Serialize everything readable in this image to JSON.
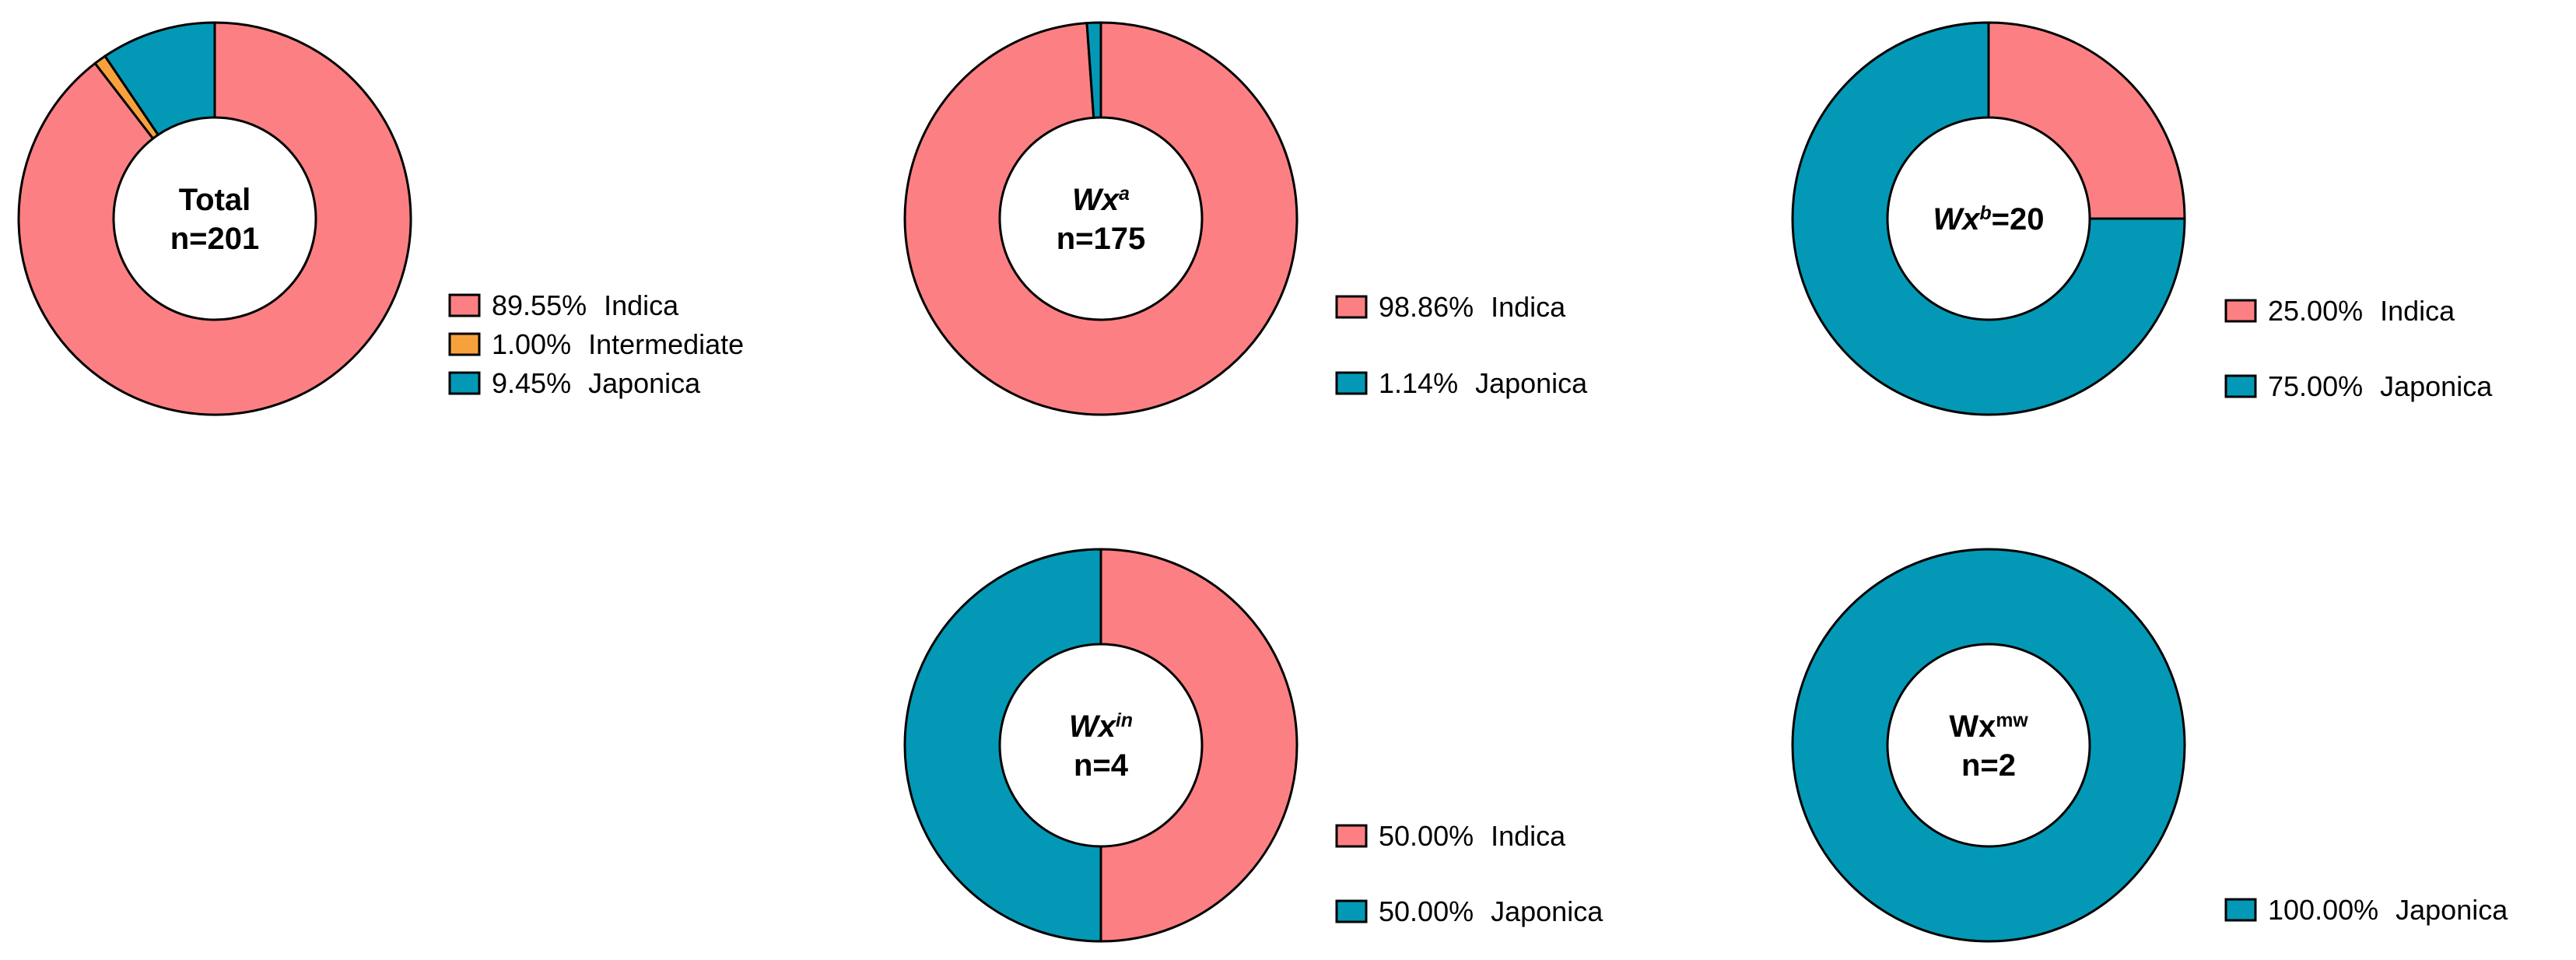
{
  "colors": {
    "Indica": "#fc8083",
    "Intermediate": "#f7a13c",
    "Japonica": "#0399b6"
  },
  "chart_data": [
    {
      "type": "pie",
      "center_lines": [
        [
          {
            "text": "Total"
          }
        ],
        [
          {
            "text": "n=201"
          }
        ]
      ],
      "slices": [
        {
          "label": "Indica",
          "percent_text": "89.55%",
          "value": 89.55
        },
        {
          "label": "Intermediate",
          "percent_text": "1.00%",
          "value": 1.0
        },
        {
          "label": "Japonica",
          "percent_text": "9.45%",
          "value": 9.45
        }
      ]
    },
    {
      "type": "pie",
      "center_lines": [
        [
          {
            "text": "Wx",
            "italic": true
          },
          {
            "text": "a",
            "italic": true,
            "sup": true
          }
        ],
        [
          {
            "text": "n=175"
          }
        ]
      ],
      "slices": [
        {
          "label": "Indica",
          "percent_text": "98.86%",
          "value": 98.86
        },
        {
          "label": "Japonica",
          "percent_text": "1.14%",
          "value": 1.14
        }
      ]
    },
    {
      "type": "pie",
      "center_lines": [
        [
          {
            "text": "Wx",
            "italic": true
          },
          {
            "text": "b",
            "italic": true,
            "sup": true
          },
          {
            "text": "=20"
          }
        ]
      ],
      "slices": [
        {
          "label": "Indica",
          "percent_text": "25.00%",
          "value": 25.0
        },
        {
          "label": "Japonica",
          "percent_text": "75.00%",
          "value": 75.0
        }
      ]
    },
    {
      "type": "pie",
      "center_lines": [
        [
          {
            "text": "Wx",
            "italic": true
          },
          {
            "text": "in",
            "italic": true,
            "sup": true
          }
        ],
        [
          {
            "text": "n=4"
          }
        ]
      ],
      "slices": [
        {
          "label": "Indica",
          "percent_text": "50.00%",
          "value": 50.0
        },
        {
          "label": "Japonica",
          "percent_text": "50.00%",
          "value": 50.0
        }
      ]
    },
    {
      "type": "pie",
      "center_lines": [
        [
          {
            "text": "Wx"
          },
          {
            "text": "mw",
            "sup": true
          }
        ],
        [
          {
            "text": "n=2"
          }
        ]
      ],
      "slices": [
        {
          "label": "Japonica",
          "percent_text": "100.00%",
          "value": 100.0
        }
      ]
    }
  ]
}
